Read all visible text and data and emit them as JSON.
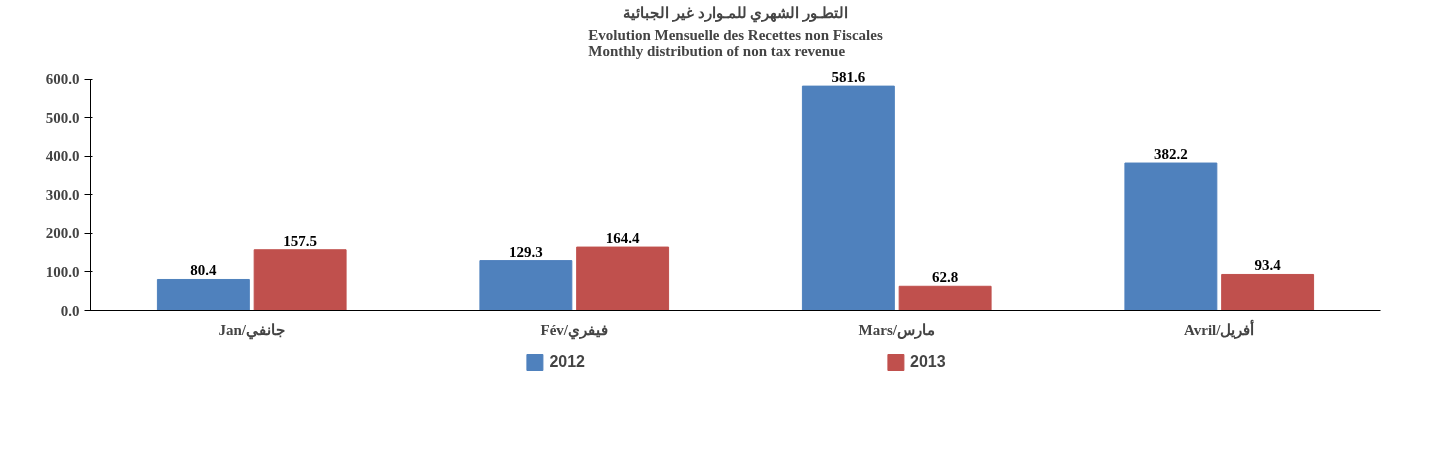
{
  "chart_data": {
    "type": "bar",
    "title": "التطـور الشهري للمـوارد غير الجبائية",
    "subtitle": "Evolution Mensuelle des Recettes non Fiscales\nMonthly distribution of non tax revenue",
    "categories": [
      "Jan/جانفي",
      "Fév/فيفري",
      "Mars/مارس",
      "Avril/أفريل"
    ],
    "series": [
      {
        "name": "2012",
        "color": "#4f81bd",
        "values": [
          80.4,
          129.3,
          581.6,
          382.2
        ]
      },
      {
        "name": "2013",
        "color": "#c0504d",
        "values": [
          157.5,
          164.4,
          62.8,
          93.4
        ]
      }
    ],
    "ylim": [
      0,
      600
    ],
    "yticks": [
      {
        "value": 0,
        "label": "0.0"
      },
      {
        "value": 100,
        "label": "100.0"
      },
      {
        "value": 200,
        "label": "200.0"
      },
      {
        "value": 300,
        "label": "300.0"
      },
      {
        "value": 400,
        "label": "400.0"
      },
      {
        "value": 500,
        "label": "500.0"
      },
      {
        "value": 600,
        "label": "600.0"
      }
    ],
    "data_labels": true,
    "grid": false,
    "legend": "bottom"
  }
}
